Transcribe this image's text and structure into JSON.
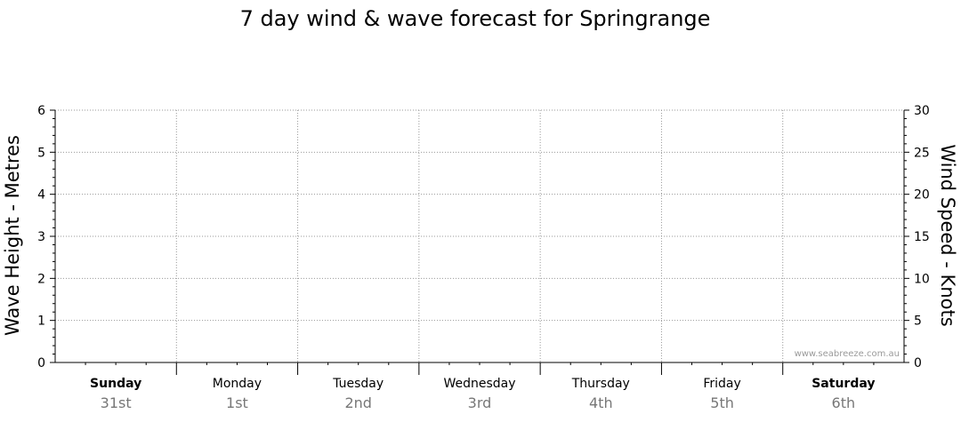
{
  "chart_data": {
    "type": "line",
    "title": "7 day wind & wave forecast for Springrange",
    "ylabel_left": "Wave Height - Metres",
    "ylabel_right": "Wind Speed - Knots",
    "ylim_left": [
      0,
      6
    ],
    "ylim_right": [
      0,
      30
    ],
    "yticks_left": [
      "0",
      "1",
      "2",
      "3",
      "4",
      "5",
      "6"
    ],
    "yticks_right": [
      "0",
      "5",
      "10",
      "15",
      "20",
      "25",
      "30"
    ],
    "grid": true,
    "days": [
      {
        "name": "Sunday",
        "date": "31st",
        "bold": true
      },
      {
        "name": "Monday",
        "date": "1st",
        "bold": false
      },
      {
        "name": "Tuesday",
        "date": "2nd",
        "bold": false
      },
      {
        "name": "Wednesday",
        "date": "3rd",
        "bold": false
      },
      {
        "name": "Thursday",
        "date": "4th",
        "bold": false
      },
      {
        "name": "Friday",
        "date": "5th",
        "bold": false
      },
      {
        "name": "Saturday",
        "date": "6th",
        "bold": true
      }
    ],
    "series": []
  },
  "watermark": "www.seabreeze.com.au"
}
